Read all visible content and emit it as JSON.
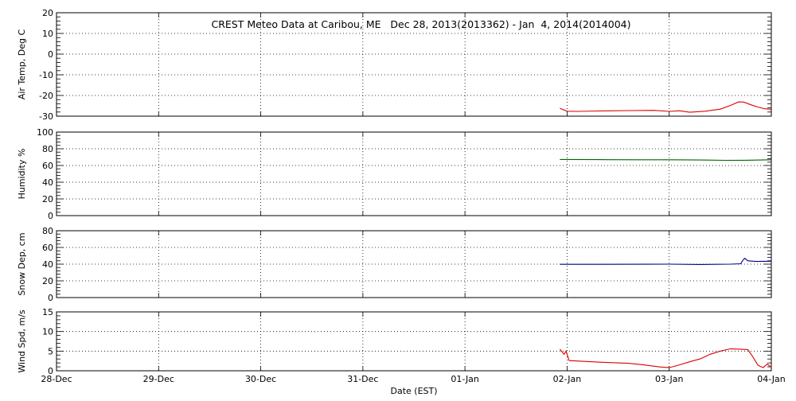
{
  "chart_data": {
    "type": "line",
    "title": "CREST Meteo Data at Caribou, ME   Dec 28, 2013(2013362) - Jan  4, 2014(2014004)",
    "xlabel": "Date (EST)",
    "x_ticks": [
      "28-Dec",
      "29-Dec",
      "30-Dec",
      "31-Dec",
      "01-Jan",
      "02-Jan",
      "03-Jan",
      "04-Jan"
    ],
    "xlim_days": [
      0,
      7
    ],
    "grid": true,
    "panels": [
      {
        "id": "air-temp",
        "ylabel": "Air Temp, Deg C",
        "ylim": [
          -30,
          20
        ],
        "y_ticks": [
          "20",
          "10",
          "0",
          "-10",
          "-20",
          "-30"
        ],
        "color": "#dd0000",
        "series": [
          [
            4.93,
            -26.2
          ],
          [
            5.0,
            -27.6
          ],
          [
            5.1,
            -27.7
          ],
          [
            5.3,
            -27.5
          ],
          [
            5.6,
            -27.3
          ],
          [
            5.85,
            -27.2
          ],
          [
            6.0,
            -27.7
          ],
          [
            6.1,
            -27.4
          ],
          [
            6.2,
            -28.1
          ],
          [
            6.35,
            -27.6
          ],
          [
            6.5,
            -26.6
          ],
          [
            6.6,
            -24.8
          ],
          [
            6.68,
            -23.1
          ],
          [
            6.73,
            -23.2
          ],
          [
            6.8,
            -24.5
          ],
          [
            6.87,
            -25.6
          ],
          [
            6.93,
            -26.4
          ],
          [
            7.0,
            -26.7
          ]
        ]
      },
      {
        "id": "humidity",
        "ylabel": "Humidity %",
        "ylim": [
          0,
          100
        ],
        "y_ticks": [
          "100",
          "80",
          "60",
          "40",
          "20",
          "0"
        ],
        "color": "#006400",
        "series": [
          [
            4.93,
            67.2
          ],
          [
            5.3,
            67.0
          ],
          [
            5.7,
            66.9
          ],
          [
            6.0,
            66.9
          ],
          [
            6.3,
            66.6
          ],
          [
            6.55,
            66.2
          ],
          [
            6.75,
            66.3
          ],
          [
            6.9,
            66.6
          ],
          [
            7.0,
            66.9
          ]
        ]
      },
      {
        "id": "snow-depth",
        "ylabel": "Snow Dep, cm",
        "ylim": [
          0,
          80
        ],
        "y_ticks": [
          "80",
          "60",
          "40",
          "20",
          "0"
        ],
        "color": "#00008b",
        "series": [
          [
            4.93,
            39.8
          ],
          [
            5.4,
            39.8
          ],
          [
            5.8,
            39.9
          ],
          [
            6.0,
            40.0
          ],
          [
            6.3,
            39.6
          ],
          [
            6.6,
            40.0
          ],
          [
            6.7,
            40.5
          ],
          [
            6.72,
            44.5
          ],
          [
            6.74,
            47.0
          ],
          [
            6.77,
            44.0
          ],
          [
            6.85,
            43.2
          ],
          [
            7.0,
            43.5
          ]
        ]
      },
      {
        "id": "wind-speed",
        "ylabel": "Wind Spd, m/s",
        "ylim": [
          0,
          15
        ],
        "y_ticks": [
          "15",
          "10",
          "5",
          "0"
        ],
        "color": "#dd0000",
        "series": [
          [
            4.93,
            5.5
          ],
          [
            4.97,
            4.2
          ],
          [
            4.99,
            5.0
          ],
          [
            5.02,
            2.6
          ],
          [
            5.3,
            2.2
          ],
          [
            5.6,
            1.9
          ],
          [
            5.75,
            1.5
          ],
          [
            5.9,
            1.0
          ],
          [
            6.0,
            0.8
          ],
          [
            6.1,
            1.5
          ],
          [
            6.2,
            2.3
          ],
          [
            6.3,
            3.0
          ],
          [
            6.4,
            4.2
          ],
          [
            6.5,
            5.0
          ],
          [
            6.6,
            5.6
          ],
          [
            6.7,
            5.5
          ],
          [
            6.77,
            5.4
          ],
          [
            6.82,
            3.5
          ],
          [
            6.87,
            1.4
          ],
          [
            6.92,
            0.8
          ],
          [
            6.96,
            1.7
          ],
          [
            7.0,
            0.9
          ]
        ]
      }
    ]
  }
}
